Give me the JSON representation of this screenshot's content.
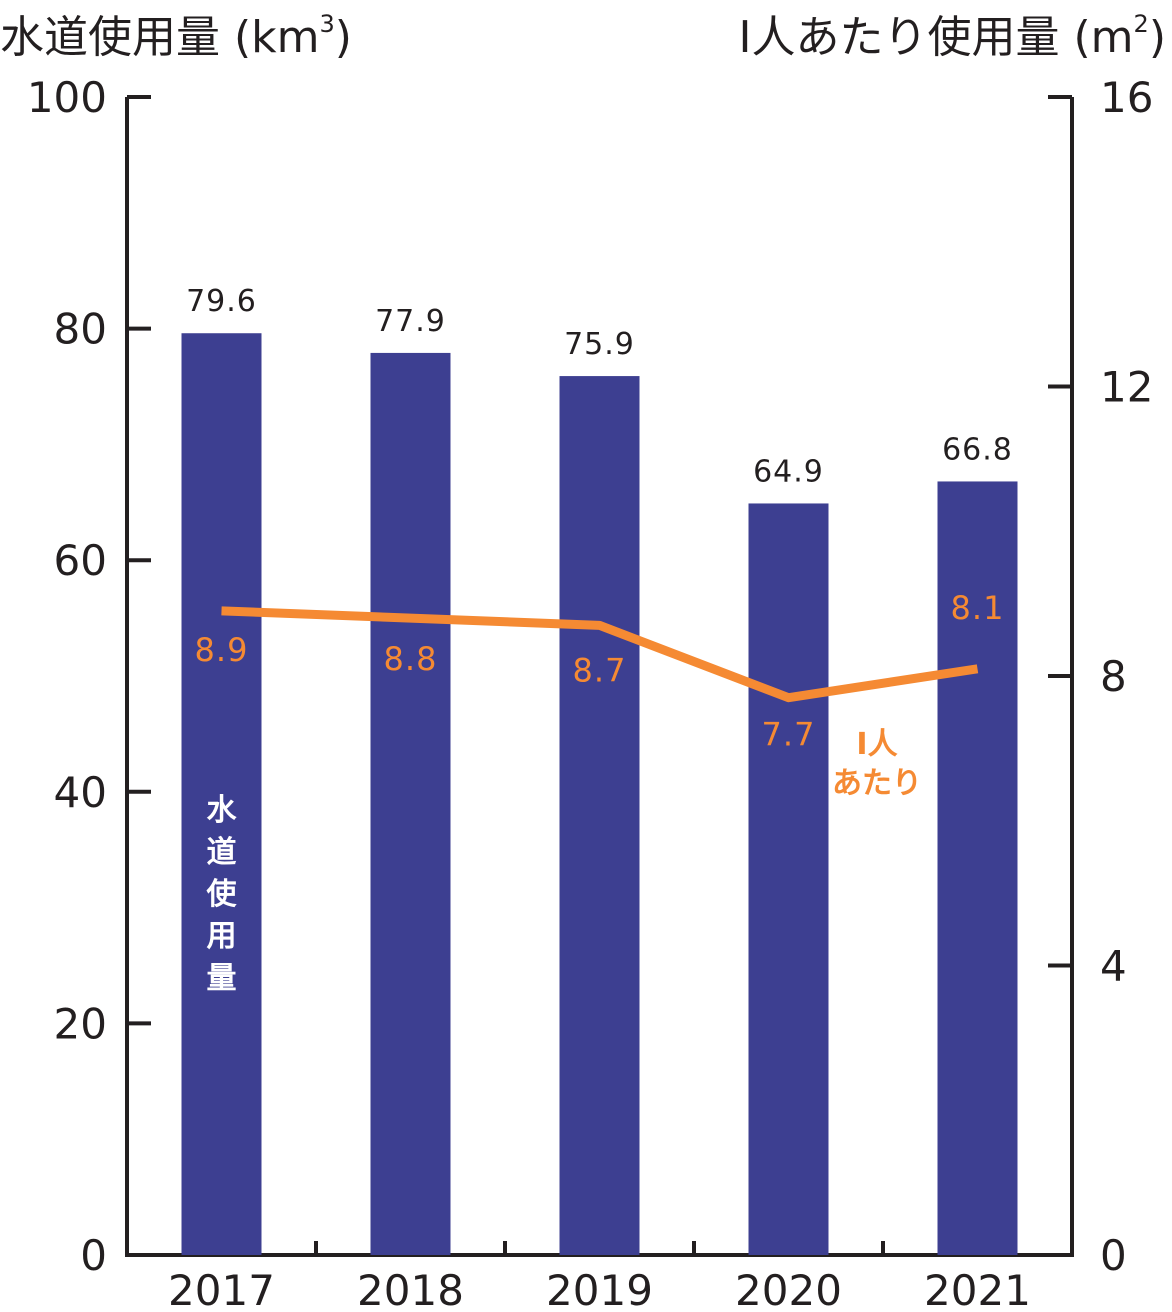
{
  "chart_data": {
    "type": "bar",
    "categories": [
      "2017",
      "2018",
      "2019",
      "2020",
      "2021"
    ],
    "left_axis": {
      "label": "水道使用量 (km",
      "label_sup": "3",
      "label_close": ")",
      "ylim": [
        0,
        100
      ],
      "ticks": [
        "0",
        "20",
        "40",
        "60",
        "80",
        "100"
      ],
      "tick_values": [
        0,
        20,
        40,
        60,
        80,
        100
      ]
    },
    "right_axis": {
      "label": "I人あたり使用量 (m",
      "label_sup": "2",
      "label_close": ")",
      "ylim": [
        0,
        16
      ],
      "ticks": [
        "0",
        "4",
        "8",
        "12",
        "16"
      ],
      "tick_values": [
        0,
        4,
        8,
        12,
        16
      ]
    },
    "series": [
      {
        "name": "水道使用量",
        "kind": "bar",
        "axis": "left",
        "color": "#3d3f91",
        "values": [
          79.6,
          77.9,
          75.9,
          64.9,
          66.8
        ],
        "labels": [
          "79.6",
          "77.9",
          "75.9",
          "64.9",
          "66.8"
        ]
      },
      {
        "name": "I人あたり",
        "kind": "line",
        "axis": "right",
        "color": "#f58a33",
        "values": [
          8.9,
          8.8,
          8.7,
          7.7,
          8.1
        ],
        "labels": [
          "8.9",
          "8.8",
          "8.7",
          "7.7",
          "8.1"
        ]
      }
    ],
    "grid": false
  }
}
